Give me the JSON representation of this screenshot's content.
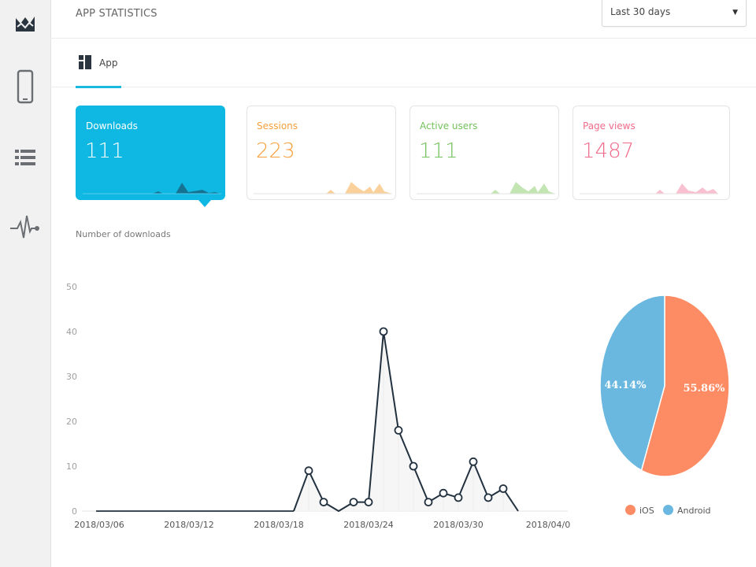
{
  "header": {
    "title": "APP STATISTICS",
    "range_select": {
      "selected": "Last 30 days"
    }
  },
  "sidebar": {
    "items": [
      {
        "name": "dashboard-icon"
      },
      {
        "name": "mobile-device-icon"
      },
      {
        "name": "list-icon"
      },
      {
        "name": "pulse-icon"
      }
    ]
  },
  "tabs": [
    {
      "label": "App",
      "icon": "layout-icon",
      "active": true
    }
  ],
  "stat_cards": [
    {
      "label": "Downloads",
      "value": "111",
      "color": "#ffffff",
      "spark": "#156a8a",
      "active": true
    },
    {
      "label": "Sessions",
      "value": "223",
      "color": "#f5a03c",
      "spark": "#f9c98a"
    },
    {
      "label": "Active users",
      "value": "111",
      "color": "#73c25c",
      "spark": "#b7e0a4"
    },
    {
      "label": "Page views",
      "value": "1487",
      "color": "#f06b8a",
      "spark": "#f7b5c8"
    }
  ],
  "section": {
    "title": "Number of downloads"
  },
  "colors": {
    "accent": "#0fb8e3",
    "ios": "#fd8b63",
    "android": "#6ab8df",
    "line": "#22313f"
  },
  "chart_data": [
    {
      "type": "line",
      "title": "Number of downloads",
      "x_ticks": [
        "2018/03/06",
        "2018/03/12",
        "2018/03/18",
        "2018/03/24",
        "2018/03/30",
        "2018/04/0"
      ],
      "y_ticks": [
        0,
        10,
        20,
        30,
        40,
        50
      ],
      "ylim": [
        0,
        50
      ],
      "grid": false,
      "series": [
        {
          "x": [
            "2018/03/20",
            "2018/03/21",
            "2018/03/22",
            "2018/03/23",
            "2018/03/24",
            "2018/03/25",
            "2018/03/26",
            "2018/03/27",
            "2018/03/28",
            "2018/03/29",
            "2018/03/30",
            "2018/03/31",
            "2018/04/01",
            "2018/04/02",
            "2018/04/03"
          ],
          "values": [
            9,
            2,
            0,
            2,
            2,
            40,
            18,
            10,
            2,
            4,
            3,
            11,
            3,
            5,
            0
          ]
        }
      ]
    },
    {
      "type": "pie",
      "slices": [
        {
          "label": "iOS",
          "value": 55.86,
          "display": "55.86%"
        },
        {
          "label": "Android",
          "value": 44.14,
          "display": "44.14%"
        }
      ],
      "legend": "bottom"
    }
  ]
}
